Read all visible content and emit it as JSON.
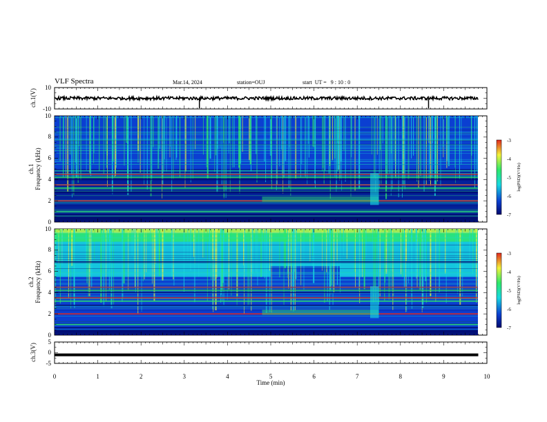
{
  "header": {
    "title": "VLF Spectra",
    "date": "Mar.14, 2024",
    "station": "station=OUJ",
    "start": "start  UT =   9 : 10 : 0"
  },
  "colorbar": {
    "label": "log(PSD)(V²/Hz)",
    "ticks": [
      "-3",
      "-4",
      "-5",
      "-6",
      "-7"
    ]
  },
  "colors": {
    "deep_blue": "#000a6e",
    "blue": "#0b3fd0",
    "cyan": "#18d8e0",
    "green": "#2ee86a",
    "yellow": "#f2f23a",
    "red": "#e0281e"
  },
  "chart_data": [
    {
      "type": "line",
      "ylabel": "ch.1(V)",
      "ylim": [
        -10,
        10
      ],
      "ytick_labels": [
        "10",
        "-10"
      ],
      "xlim": [
        0,
        10
      ],
      "series": [
        {
          "x": [
            0,
            9.8
          ],
          "values": [
            0,
            0
          ]
        }
      ],
      "spikes_x": [
        3.35,
        8.65
      ]
    },
    {
      "type": "heatmap",
      "ylabel": "ch.1",
      "ylabel2": "Frequency (kHz)",
      "ylim": [
        0,
        10
      ],
      "ytick_labels": [
        "0",
        "2",
        "4",
        "6",
        "8",
        "10"
      ],
      "xlim": [
        0,
        10
      ],
      "data_x_end": 9.8,
      "color_range": [
        -7,
        -3
      ],
      "description_bands_khz": [
        0.7,
        1.0,
        2.0,
        2.8,
        3.2,
        3.5,
        4.0,
        4.2,
        4.5
      ]
    },
    {
      "type": "heatmap",
      "ylabel": "ch.2",
      "ylabel2": "Frequency (kHz)",
      "ylim": [
        0,
        10
      ],
      "ytick_labels": [
        "0",
        "2",
        "4",
        "6",
        "8",
        "10"
      ],
      "xlim": [
        0,
        10
      ],
      "data_x_end": 9.8,
      "color_range": [
        -7,
        -3
      ],
      "description_bands_khz": [
        0.7,
        1.0,
        2.0,
        2.8,
        3.2,
        3.5,
        4.0,
        4.2,
        4.5,
        6.9
      ]
    },
    {
      "type": "line",
      "ylabel": "ch.3(V)",
      "ylim": [
        -5,
        5
      ],
      "ytick_labels": [
        "5",
        "0",
        "-5"
      ],
      "xlim": [
        0,
        10
      ],
      "xlabel": "Time (min)",
      "xtick_labels": [
        "0",
        "1",
        "2",
        "3",
        "4",
        "5",
        "6",
        "7",
        "8",
        "9",
        "10"
      ],
      "series": [
        {
          "x": [
            0,
            9.8
          ],
          "values": [
            -1,
            -1
          ]
        }
      ]
    }
  ]
}
